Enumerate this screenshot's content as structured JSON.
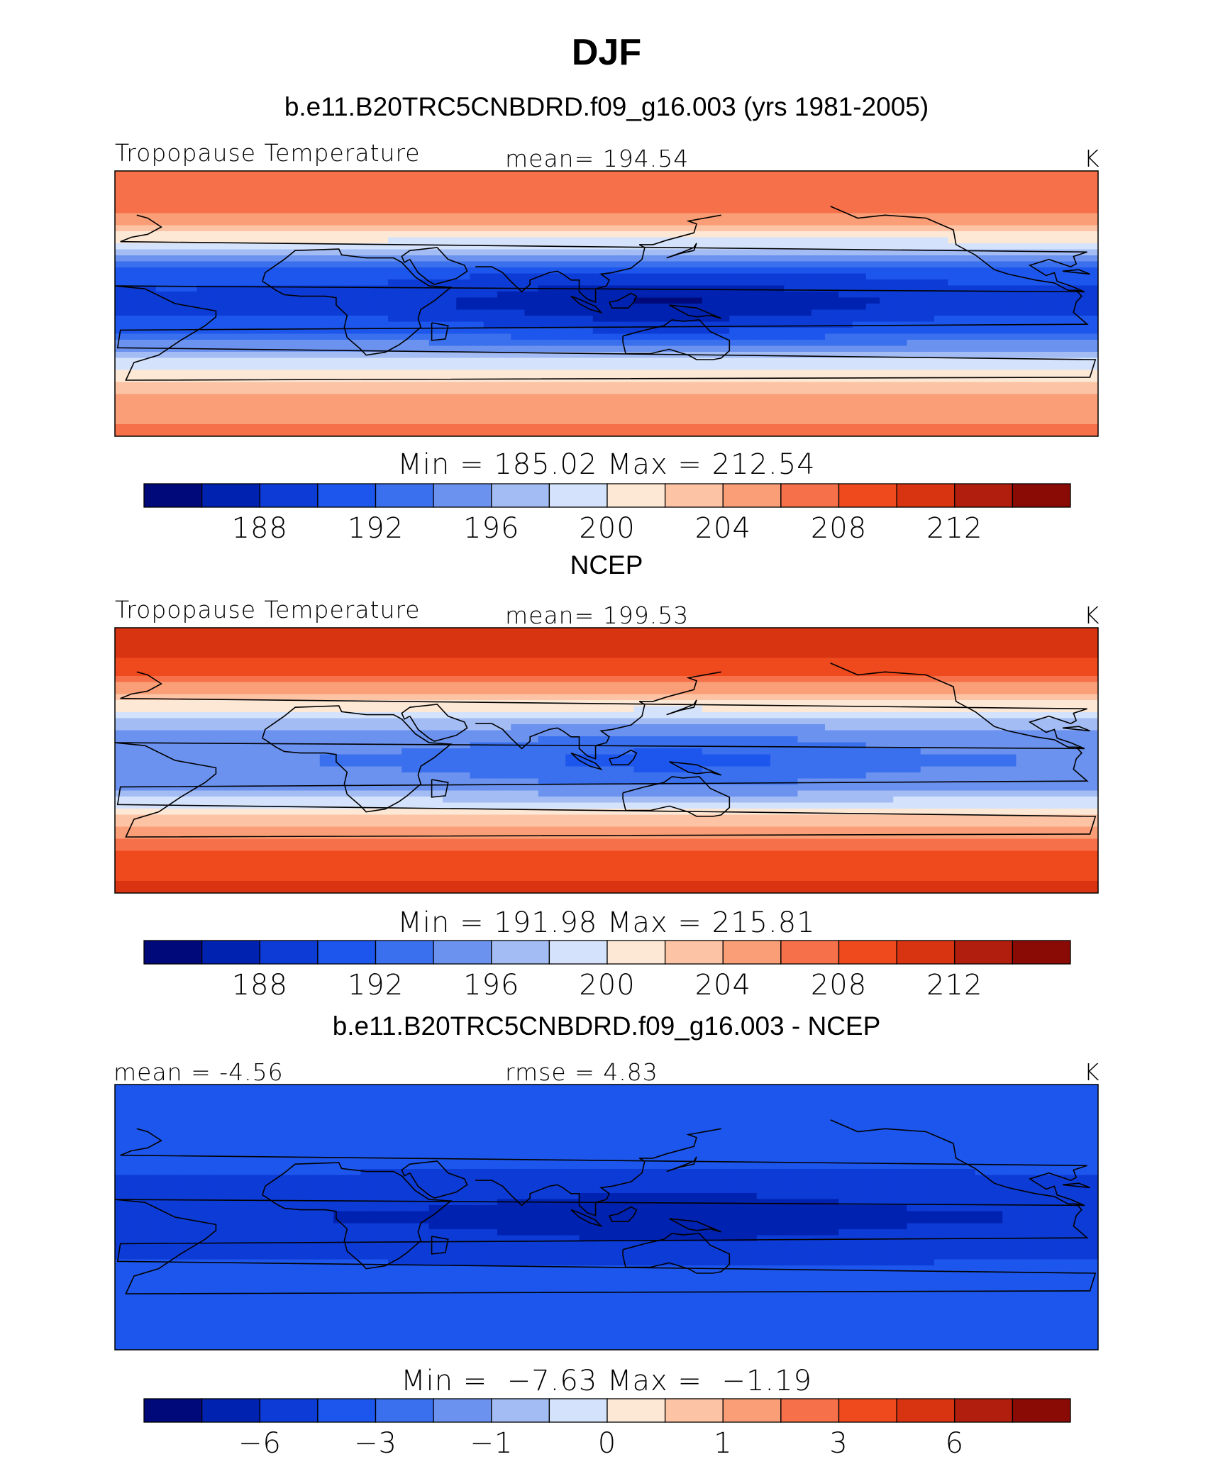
{
  "title": "DJF",
  "panels": [
    {
      "heading": "b.e11.B20TRC5CNBDRD.f09_g16.003 (yrs 1981-2005)",
      "left_label": "Tropopause Temperature",
      "center_label": "mean= 194.54",
      "units": "K",
      "minmax": "Min = 185.02 Max = 212.54",
      "colorbar_labels": [
        "188",
        "192",
        "196",
        "200",
        "204",
        "208",
        "212"
      ]
    },
    {
      "heading": "NCEP",
      "left_label": "Tropopause Temperature",
      "center_label": "mean= 199.53",
      "units": "K",
      "minmax": "Min = 191.98 Max = 215.81",
      "colorbar_labels": [
        "188",
        "192",
        "196",
        "200",
        "204",
        "208",
        "212"
      ]
    },
    {
      "heading": "b.e11.B20TRC5CNBDRD.f09_g16.003 - NCEP",
      "left_label": "mean =  -4.56",
      "center_label": "rmse =    4.83",
      "units": "K",
      "minmax": "Min =  −7.63 Max =  −1.19",
      "colorbar_labels": [
        "−6",
        "−3",
        "−1",
        "0",
        "1",
        "3",
        "6"
      ]
    }
  ],
  "chart_data": [
    {
      "type": "heatmap",
      "title": "Tropopause Temperature",
      "units": "K",
      "mean": 194.54,
      "min": 185.02,
      "max": 212.54,
      "levels": [
        186,
        188,
        190,
        192,
        194,
        196,
        198,
        200,
        202,
        204,
        206,
        208,
        210,
        212,
        214
      ],
      "tick_labels": [
        188,
        192,
        196,
        200,
        204,
        208,
        212
      ],
      "tick_level_index": [
        1,
        3,
        5,
        7,
        9,
        11,
        13
      ],
      "colors": [
        "#00097a",
        "#0022b0",
        "#0d3bd6",
        "#1d56ec",
        "#3a70ee",
        "#6b92ef",
        "#a3bcf4",
        "#d4e3fb",
        "#fde8d6",
        "#fcc3a4",
        "#f99e76",
        "#f6704a",
        "#ef4a1e",
        "#d93412",
        "#b21e0d",
        "#8a0b05"
      ],
      "zonal_profile": [
        [
          90,
          208
        ],
        [
          60,
          206
        ],
        [
          40,
          199
        ],
        [
          20,
          191
        ],
        [
          0,
          189
        ],
        [
          -20,
          192
        ],
        [
          -40,
          199
        ],
        [
          -60,
          204
        ],
        [
          -90,
          207
        ]
      ]
    },
    {
      "type": "heatmap",
      "title": "Tropopause Temperature",
      "units": "K",
      "mean": 199.53,
      "min": 191.98,
      "max": 215.81,
      "levels": [
        186,
        188,
        190,
        192,
        194,
        196,
        198,
        200,
        202,
        204,
        206,
        208,
        210,
        212,
        214
      ],
      "tick_labels": [
        188,
        192,
        196,
        200,
        204,
        208,
        212
      ],
      "tick_level_index": [
        1,
        3,
        5,
        7,
        9,
        11,
        13
      ],
      "colors": [
        "#00097a",
        "#0022b0",
        "#0d3bd6",
        "#1d56ec",
        "#3a70ee",
        "#6b92ef",
        "#a3bcf4",
        "#d4e3fb",
        "#fde8d6",
        "#fcc3a4",
        "#f99e76",
        "#f6704a",
        "#ef4a1e",
        "#d93412",
        "#b21e0d",
        "#8a0b05"
      ],
      "zonal_profile": [
        [
          90,
          212
        ],
        [
          60,
          209
        ],
        [
          40,
          202
        ],
        [
          20,
          196
        ],
        [
          0,
          194
        ],
        [
          -20,
          196
        ],
        [
          -40,
          203
        ],
        [
          -60,
          208
        ],
        [
          -90,
          211
        ]
      ]
    },
    {
      "type": "heatmap",
      "title": "b.e11.B20TRC5CNBDRD.f09_g16.003 - NCEP",
      "units": "K",
      "mean": -4.56,
      "rmse": 4.83,
      "min": -7.63,
      "max": -1.19,
      "levels": [
        -8,
        -6,
        -5,
        -3,
        -2,
        -1,
        -0.5,
        0,
        0.5,
        1,
        2,
        3,
        5,
        6,
        8
      ],
      "tick_labels": [
        -6,
        -3,
        -1,
        0,
        1,
        3,
        6
      ],
      "tick_level_index": [
        1,
        3,
        5,
        7,
        9,
        11,
        13
      ],
      "colors": [
        "#00097a",
        "#0022b0",
        "#0d3bd6",
        "#1d56ec",
        "#3a70ee",
        "#6b92ef",
        "#a3bcf4",
        "#d4e3fb",
        "#fde8d6",
        "#fcc3a4",
        "#f99e76",
        "#f6704a",
        "#ef4a1e",
        "#d93412",
        "#b21e0d",
        "#8a0b05"
      ],
      "zonal_profile": [
        [
          90,
          -3
        ],
        [
          60,
          -4
        ],
        [
          30,
          -5
        ],
        [
          0,
          -6
        ],
        [
          -30,
          -5
        ],
        [
          -60,
          -3.5
        ],
        [
          -90,
          -3
        ]
      ]
    }
  ]
}
